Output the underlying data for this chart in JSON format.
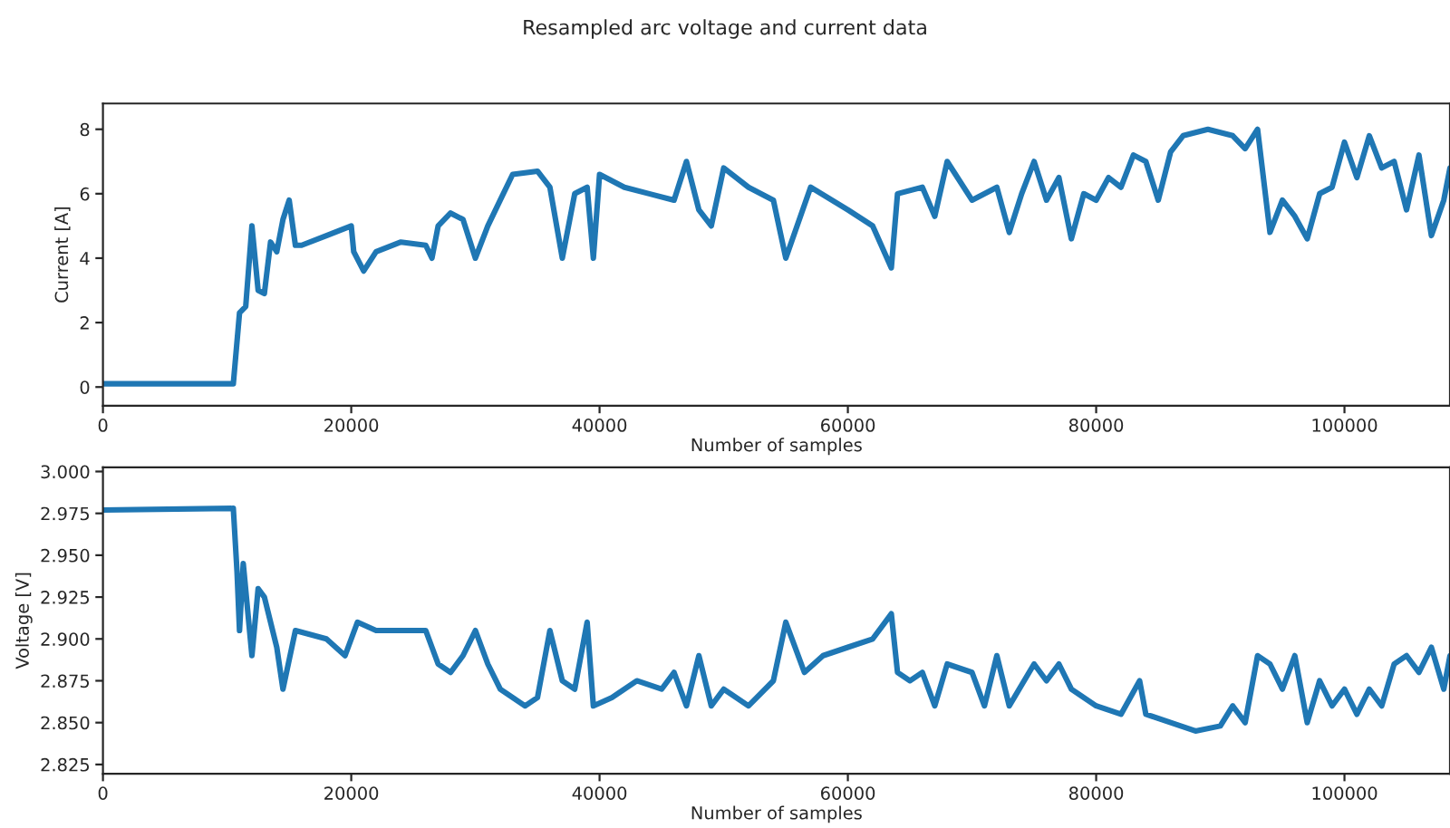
{
  "chart_data": [
    {
      "type": "line",
      "title": "Resampled arc voltage and current data",
      "xlabel": "Number of samples",
      "ylabel": "Current [A]",
      "xlim": [
        0,
        108500
      ],
      "ylim": [
        -0.58,
        8.8
      ],
      "xticks": [
        0,
        20000,
        40000,
        60000,
        80000,
        100000
      ],
      "yticks": [
        0,
        2,
        4,
        6,
        8
      ],
      "grid": false,
      "legend": false,
      "series": [
        {
          "color": "#1f77b4",
          "x": [
            0,
            5000,
            10500,
            11000,
            11500,
            12000,
            12500,
            13000,
            13500,
            14000,
            14500,
            15000,
            15500,
            16000,
            18000,
            20000,
            20200,
            21000,
            22000,
            24000,
            26000,
            26500,
            27000,
            28000,
            29000,
            30000,
            31000,
            32000,
            33000,
            35000,
            36000,
            37000,
            38000,
            39000,
            39500,
            40000,
            42000,
            44000,
            46000,
            47000,
            48000,
            49000,
            50000,
            52000,
            54000,
            55000,
            57000,
            60000,
            62000,
            63500,
            64000,
            66000,
            67000,
            68000,
            70000,
            72000,
            73000,
            74000,
            75000,
            76000,
            77000,
            78000,
            79000,
            80000,
            81000,
            82000,
            83000,
            84000,
            85000,
            86000,
            87000,
            89000,
            91000,
            92000,
            93000,
            94000,
            95000,
            96000,
            97000,
            98000,
            99000,
            100000,
            101000,
            102000,
            103000,
            104000,
            105000,
            106000,
            107000,
            108000,
            108500
          ],
          "values": [
            0.1,
            0.1,
            0.1,
            2.3,
            2.5,
            5.0,
            3.0,
            2.9,
            4.5,
            4.2,
            5.2,
            5.8,
            4.4,
            4.4,
            4.7,
            5.0,
            4.2,
            3.6,
            4.2,
            4.5,
            4.4,
            4.0,
            5.0,
            5.4,
            5.2,
            4.0,
            5.0,
            5.8,
            6.6,
            6.7,
            6.2,
            4.0,
            6.0,
            6.2,
            4.0,
            6.6,
            6.2,
            6.0,
            5.8,
            7.0,
            5.5,
            5.0,
            6.8,
            6.2,
            5.8,
            4.0,
            6.2,
            5.5,
            5.0,
            3.7,
            6.0,
            6.2,
            5.3,
            7.0,
            5.8,
            6.2,
            4.8,
            6.0,
            7.0,
            5.8,
            6.5,
            4.6,
            6.0,
            5.8,
            6.5,
            6.2,
            7.2,
            7.0,
            5.8,
            7.3,
            7.8,
            8.0,
            7.8,
            7.4,
            8.0,
            4.8,
            5.8,
            5.3,
            4.6,
            6.0,
            6.2,
            7.6,
            6.5,
            7.8,
            6.8,
            7.0,
            5.5,
            7.2,
            4.7,
            5.8,
            6.8
          ]
        }
      ]
    },
    {
      "type": "line",
      "xlabel": "Number of samples",
      "ylabel": "Voltage [V]",
      "xlim": [
        0,
        108500
      ],
      "ylim": [
        2.8195,
        3.0025
      ],
      "xticks": [
        0,
        20000,
        40000,
        60000,
        80000,
        100000
      ],
      "yticks": [
        {
          "value": 2.825,
          "label": "2.825"
        },
        {
          "value": 2.85,
          "label": "2.850"
        },
        {
          "value": 2.875,
          "label": "2.875"
        },
        {
          "value": 2.9,
          "label": "2.900"
        },
        {
          "value": 2.925,
          "label": "2.925"
        },
        {
          "value": 2.95,
          "label": "2.950"
        },
        {
          "value": 2.975,
          "label": "2.975"
        },
        {
          "value": 3.0,
          "label": "3.000"
        }
      ],
      "grid": false,
      "legend": false,
      "series": [
        {
          "color": "#1f77b4",
          "x": [
            0,
            10500,
            10800,
            11000,
            11300,
            12000,
            12500,
            13000,
            14000,
            14500,
            15500,
            18000,
            19500,
            20500,
            22000,
            24000,
            26000,
            27000,
            28000,
            29000,
            30000,
            31000,
            32000,
            34000,
            35000,
            36000,
            37000,
            38000,
            39000,
            39500,
            41000,
            43000,
            45000,
            46000,
            47000,
            48000,
            49000,
            50000,
            52000,
            54000,
            55000,
            56500,
            58000,
            60000,
            62000,
            63500,
            64000,
            65000,
            66000,
            67000,
            68000,
            70000,
            71000,
            72000,
            73000,
            75000,
            76000,
            77000,
            78000,
            80000,
            82000,
            83500,
            84000,
            86000,
            88000,
            90000,
            91000,
            92000,
            93000,
            94000,
            95000,
            96000,
            97000,
            98000,
            99000,
            100000,
            101000,
            102000,
            103000,
            104000,
            105000,
            106000,
            107000,
            108000,
            108500
          ],
          "values": [
            2.977,
            2.978,
            2.94,
            2.905,
            2.945,
            2.89,
            2.93,
            2.925,
            2.895,
            2.87,
            2.905,
            2.9,
            2.89,
            2.91,
            2.905,
            2.905,
            2.905,
            2.885,
            2.88,
            2.89,
            2.905,
            2.885,
            2.87,
            2.86,
            2.865,
            2.905,
            2.875,
            2.87,
            2.91,
            2.86,
            2.865,
            2.875,
            2.87,
            2.88,
            2.86,
            2.89,
            2.86,
            2.87,
            2.86,
            2.875,
            2.91,
            2.88,
            2.89,
            2.895,
            2.9,
            2.915,
            2.88,
            2.875,
            2.88,
            2.86,
            2.885,
            2.88,
            2.86,
            2.89,
            2.86,
            2.885,
            2.875,
            2.885,
            2.87,
            2.86,
            2.855,
            2.875,
            2.855,
            2.85,
            2.845,
            2.848,
            2.86,
            2.85,
            2.89,
            2.885,
            2.87,
            2.89,
            2.85,
            2.875,
            2.86,
            2.87,
            2.855,
            2.87,
            2.86,
            2.885,
            2.89,
            2.88,
            2.895,
            2.87,
            2.89
          ]
        }
      ]
    }
  ]
}
